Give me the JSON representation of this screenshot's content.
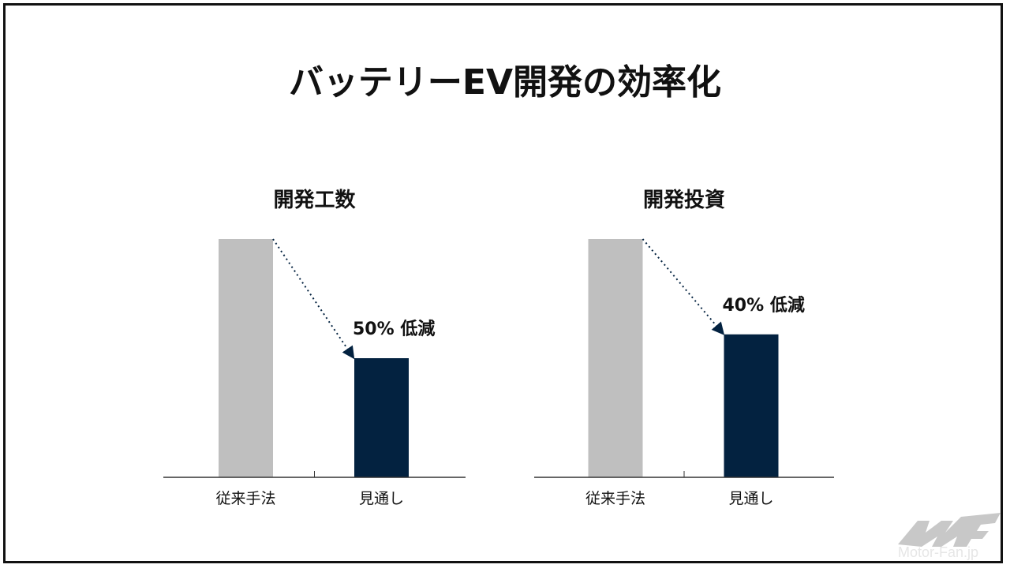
{
  "title": "バッテリーEV開発の効率化",
  "colors": {
    "baseline_bar": "#bfbfbf",
    "outlook_bar": "#032240",
    "axis": "#333333",
    "text": "#111111"
  },
  "watermark": "Motor-Fan.jp",
  "chart_data": [
    {
      "type": "bar",
      "title": "開発工数",
      "categories": [
        "従来手法",
        "見通し"
      ],
      "values": [
        100,
        50
      ],
      "annotation": "50% 低減",
      "ylim": [
        0,
        100
      ],
      "xlabel": "",
      "ylabel": ""
    },
    {
      "type": "bar",
      "title": "開発投資",
      "categories": [
        "従来手法",
        "見通し"
      ],
      "values": [
        100,
        60
      ],
      "annotation": "40% 低減",
      "ylim": [
        0,
        100
      ],
      "xlabel": "",
      "ylabel": ""
    }
  ]
}
